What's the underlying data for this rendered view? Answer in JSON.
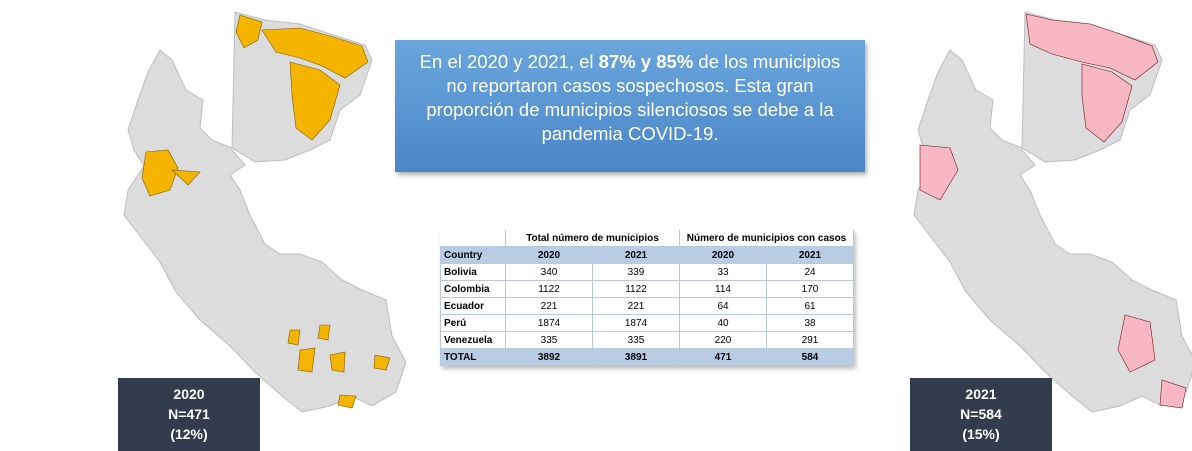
{
  "callout": {
    "text_before": "En el 2020 y 2021, el ",
    "bold": "87% y 85%",
    "text_after": " de los municipios no reportaron casos sospechosos. Esta gran proporción de municipios silenciosos se debe a la pandemia COVID-19."
  },
  "table": {
    "group_headers": [
      "Total número de municipios",
      "Número de municipios con casos"
    ],
    "header": [
      "Country",
      "2020",
      "2021",
      "2020",
      "2021"
    ],
    "rows": [
      [
        "Bolivia",
        "340",
        "339",
        "33",
        "24"
      ],
      [
        "Colombia",
        "1122",
        "1122",
        "114",
        "170"
      ],
      [
        "Ecuador",
        "221",
        "221",
        "64",
        "61"
      ],
      [
        "Perú",
        "1874",
        "1874",
        "40",
        "38"
      ],
      [
        "Venezuela",
        "335",
        "335",
        "220",
        "291"
      ],
      [
        "TOTAL",
        "3892",
        "3891",
        "471",
        "584"
      ]
    ]
  },
  "maps": [
    {
      "label": [
        "2020",
        "N=471",
        "(12%)"
      ]
    },
    {
      "label": [
        "2021",
        "N=584",
        "(15%)"
      ]
    }
  ]
}
